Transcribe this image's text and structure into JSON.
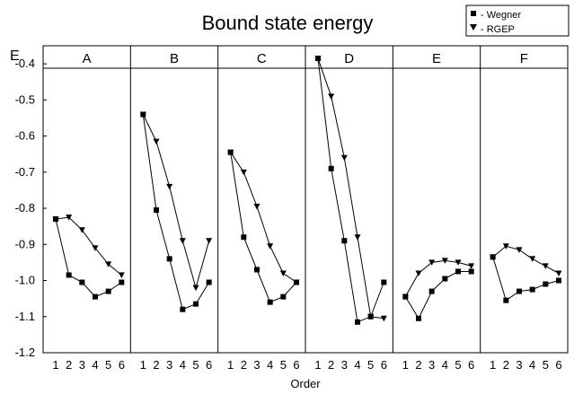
{
  "chart_data": {
    "type": "line",
    "title": "Bound state energy",
    "ylabel": "E",
    "xlabel": "Order",
    "ylim": [
      -1.2,
      -0.35
    ],
    "yticks": [
      "-0.4",
      "-0.5",
      "-0.6",
      "-0.7",
      "-0.8",
      "-0.9",
      "-1.0",
      "-1.1",
      "-1.2"
    ],
    "ytick_values": [
      -0.4,
      -0.5,
      -0.6,
      -0.7,
      -0.8,
      -0.9,
      -1.0,
      -1.1,
      -1.2
    ],
    "x": [
      "1",
      "2",
      "3",
      "4",
      "5",
      "6"
    ],
    "legend": [
      {
        "label": "- Wegner",
        "marker": "square"
      },
      {
        "label": "- RGEP",
        "marker": "triangle-down"
      }
    ],
    "panels": [
      {
        "name": "A",
        "series": [
          {
            "name": "Wegner",
            "values": [
              -0.83,
              -0.985,
              -1.005,
              -1.045,
              -1.03,
              -1.005
            ]
          },
          {
            "name": "RGEP",
            "values": [
              -0.83,
              -0.825,
              -0.86,
              -0.91,
              -0.955,
              -0.985
            ]
          }
        ]
      },
      {
        "name": "B",
        "series": [
          {
            "name": "Wegner",
            "values": [
              -0.54,
              -0.805,
              -0.94,
              -1.08,
              -1.065,
              -1.005
            ]
          },
          {
            "name": "RGEP",
            "values": [
              -0.54,
              -0.615,
              -0.74,
              -0.89,
              -1.02,
              -0.89
            ]
          }
        ]
      },
      {
        "name": "C",
        "series": [
          {
            "name": "Wegner",
            "values": [
              -0.645,
              -0.88,
              -0.97,
              -1.06,
              -1.045,
              -1.005
            ]
          },
          {
            "name": "RGEP",
            "values": [
              -0.645,
              -0.7,
              -0.795,
              -0.905,
              -0.98,
              -1.005
            ]
          }
        ]
      },
      {
        "name": "D",
        "series": [
          {
            "name": "Wegner",
            "values": [
              -0.385,
              -0.69,
              -0.89,
              -1.115,
              -1.1,
              -1.005
            ]
          },
          {
            "name": "RGEP",
            "values": [
              -0.385,
              -0.49,
              -0.66,
              -0.88,
              -1.1,
              -1.105
            ]
          }
        ]
      },
      {
        "name": "E",
        "series": [
          {
            "name": "Wegner",
            "values": [
              -1.045,
              -1.105,
              -1.03,
              -0.995,
              -0.975,
              -0.975
            ]
          },
          {
            "name": "RGEP",
            "values": [
              -1.045,
              -0.98,
              -0.95,
              -0.945,
              -0.95,
              -0.96
            ]
          }
        ]
      },
      {
        "name": "F",
        "series": [
          {
            "name": "Wegner",
            "values": [
              -0.935,
              -1.055,
              -1.03,
              -1.025,
              -1.01,
              -1.0
            ]
          },
          {
            "name": "RGEP",
            "values": [
              -0.935,
              -0.905,
              -0.915,
              -0.94,
              -0.96,
              -0.98
            ]
          }
        ]
      }
    ]
  }
}
